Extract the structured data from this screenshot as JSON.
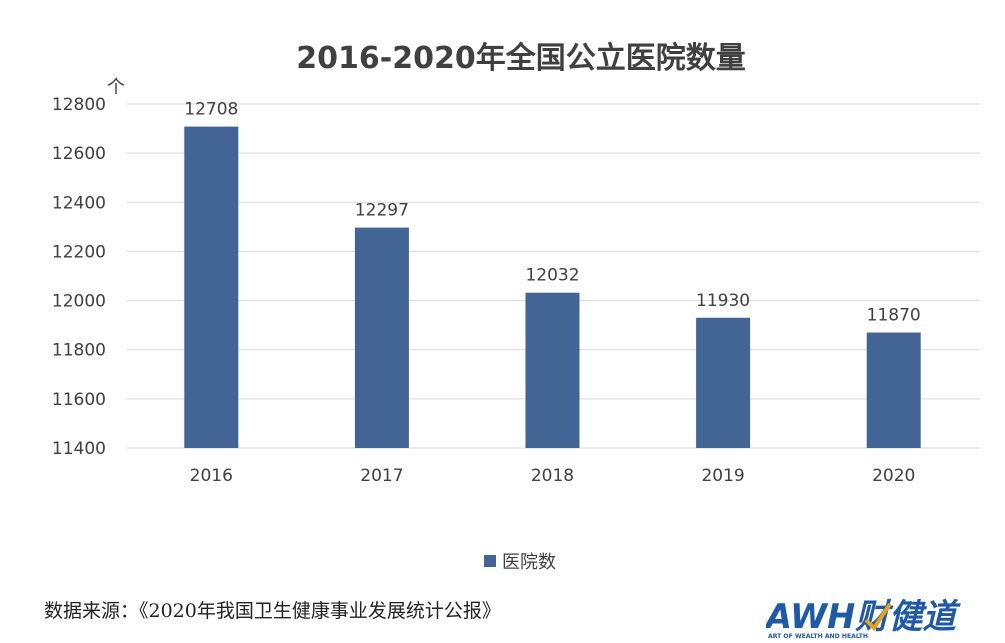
{
  "chart_data": {
    "type": "bar",
    "title": "2016-2020年全国公立医院数量",
    "unit_label": "个",
    "categories": [
      "2016",
      "2017",
      "2018",
      "2019",
      "2020"
    ],
    "series": [
      {
        "name": "医院数",
        "values": [
          12708,
          12297,
          12032,
          11930,
          11870
        ]
      }
    ],
    "ylim": [
      11400,
      12800
    ],
    "yticks": [
      11400,
      11600,
      11800,
      12000,
      12200,
      12400,
      12600,
      12800
    ],
    "grid": true,
    "legend_position": "bottom",
    "colors": {
      "bar": "#426595",
      "grid": "#d9d9d9",
      "text": "#404040"
    }
  },
  "source_text": "数据来源：《2020年我国卫生健康事业发展统计公报》",
  "logo": {
    "main": "AWH财健道",
    "sub": "ART OF WEALTH AND HEALTH",
    "colors": {
      "primary": "#1e5aa8",
      "accent": "#e8a21a"
    }
  }
}
